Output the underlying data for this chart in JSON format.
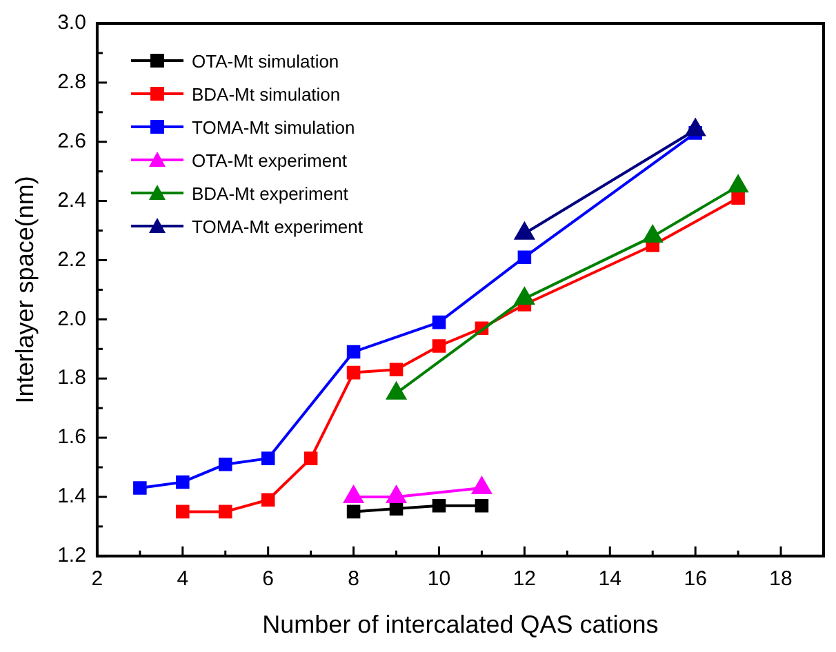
{
  "chart_data": {
    "type": "line",
    "xlabel": "Number of intercalated QAS cations",
    "ylabel": "Interlayer space(nm)",
    "xlim": [
      2,
      19
    ],
    "xticks": [
      2,
      4,
      6,
      8,
      10,
      12,
      14,
      16,
      18
    ],
    "ylim": [
      1.2,
      3.0
    ],
    "yticks": [
      1.2,
      1.4,
      1.6,
      1.8,
      {
        "value": 2,
        "label": "2.0"
      },
      2.2,
      2.4,
      2.6,
      2.8,
      {
        "value": 3,
        "label": "3.0"
      }
    ],
    "grid": false,
    "legend": "top left",
    "series": [
      {
        "name": "OTA-Mt simulation",
        "color": "#000000",
        "marker": "square",
        "x": [
          8,
          9,
          10,
          11
        ],
        "values": [
          1.35,
          1.36,
          1.37,
          1.37
        ]
      },
      {
        "name": "BDA-Mt simulation",
        "color": "#ff0000",
        "marker": "square",
        "x": [
          4,
          5,
          6,
          7,
          8,
          9,
          10,
          11,
          12,
          15,
          17
        ],
        "values": [
          1.35,
          1.35,
          1.39,
          1.53,
          1.82,
          1.83,
          1.91,
          1.97,
          2.05,
          2.25,
          2.41
        ]
      },
      {
        "name": "TOMA-Mt simulation",
        "color": "#0000ff",
        "marker": "square",
        "x": [
          3,
          4,
          5,
          6,
          8,
          10,
          12,
          16
        ],
        "values": [
          1.43,
          1.45,
          1.51,
          1.53,
          1.89,
          1.99,
          2.21,
          2.63
        ]
      },
      {
        "name": "OTA-Mt experiment",
        "color": "#ff00ff",
        "marker": "triangle",
        "x": [
          8,
          9,
          11
        ],
        "values": [
          1.4,
          1.4,
          1.43
        ]
      },
      {
        "name": "BDA-Mt experiment",
        "color": "#008000",
        "marker": "triangle",
        "x": [
          9,
          12,
          15,
          17
        ],
        "values": [
          1.75,
          2.07,
          2.28,
          2.45
        ]
      },
      {
        "name": "TOMA-Mt experiment",
        "color": "#000080",
        "marker": "triangle",
        "x": [
          12,
          16
        ],
        "values": [
          2.29,
          2.64
        ]
      }
    ]
  }
}
